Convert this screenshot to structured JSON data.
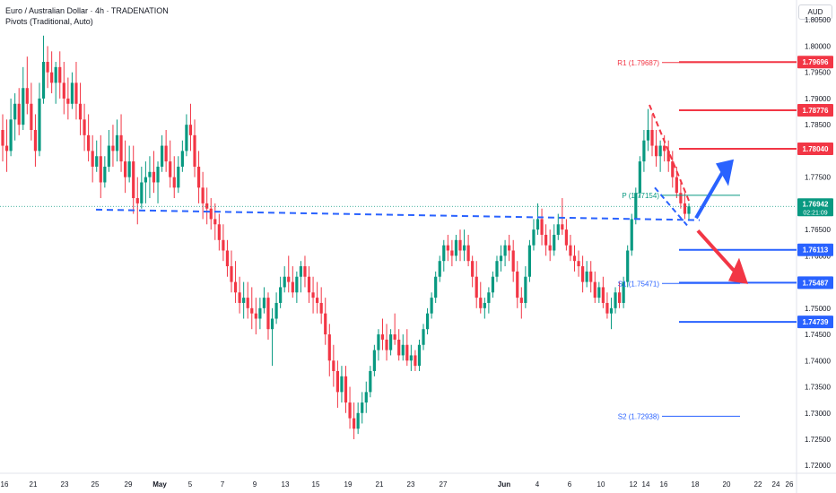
{
  "header": {
    "title": "Euro / Australian Dollar · 4h · TRADENATION",
    "indicator": "Pivots (Traditional, Auto)"
  },
  "currency_button": "AUD",
  "colors": {
    "up": "#089981",
    "down": "#f23645",
    "red_level": "#f23645",
    "blue_level": "#2962ff",
    "pivot": "#089981",
    "dashed_blue": "#2962ff",
    "dashed_red": "#f23645",
    "arrow_blue": "#2962ff",
    "arrow_red": "#f23645"
  },
  "chart_data": {
    "type": "candlestick",
    "timeframe": "4h",
    "y_axis": {
      "ylim": [
        1.7185,
        1.8088
      ],
      "ticks": [
        "1.80500",
        "1.80000",
        "1.79500",
        "1.79000",
        "1.78500",
        "1.78000",
        "1.77500",
        "1.77000",
        "1.76500",
        "1.76000",
        "1.75500",
        "1.75000",
        "1.74500",
        "1.74000",
        "1.73500",
        "1.73000",
        "1.72500",
        "1.72000"
      ]
    },
    "x_axis": {
      "ticks": [
        "16",
        "21",
        "23",
        "25",
        "29",
        "May",
        "5",
        "7",
        "9",
        "13",
        "15",
        "19",
        "21",
        "23",
        "27",
        "Jun",
        "4",
        "6",
        "10",
        "12",
        "14",
        "16",
        "18",
        "20",
        "22",
        "24",
        "26"
      ]
    },
    "current_price": "1.76942",
    "countdown": "02:21:09",
    "resistance_levels": [
      "1.79696",
      "1.78776",
      "1.78040"
    ],
    "support_levels": [
      "1.76113",
      "1.75487",
      "1.74739"
    ],
    "pivots": [
      {
        "label": "R1",
        "value": "1.79687"
      },
      {
        "label": "P",
        "value": "1.77154"
      },
      {
        "label": "S1",
        "value": "1.75471"
      },
      {
        "label": "S2",
        "value": "1.72938"
      }
    ],
    "candles": [
      [
        1.784,
        1.787,
        1.778,
        1.781
      ],
      [
        1.781,
        1.786,
        1.776,
        1.78
      ],
      [
        1.78,
        1.79,
        1.779,
        1.786
      ],
      [
        1.786,
        1.791,
        1.782,
        1.789
      ],
      [
        1.789,
        1.792,
        1.783,
        1.785
      ],
      [
        1.785,
        1.796,
        1.784,
        1.792
      ],
      [
        1.792,
        1.798,
        1.787,
        1.789
      ],
      [
        1.789,
        1.793,
        1.782,
        1.784
      ],
      [
        1.784,
        1.787,
        1.777,
        1.78
      ],
      [
        1.78,
        1.793,
        1.779,
        1.79
      ],
      [
        1.79,
        1.802,
        1.789,
        1.797
      ],
      [
        1.797,
        1.8,
        1.792,
        1.795
      ],
      [
        1.795,
        1.799,
        1.791,
        1.793
      ],
      [
        1.793,
        1.797,
        1.789,
        1.796
      ],
      [
        1.796,
        1.799,
        1.79,
        1.793
      ],
      [
        1.793,
        1.797,
        1.787,
        1.79
      ],
      [
        1.79,
        1.794,
        1.786,
        1.789
      ],
      [
        1.789,
        1.795,
        1.788,
        1.793
      ],
      [
        1.793,
        1.797,
        1.786,
        1.789
      ],
      [
        1.789,
        1.793,
        1.783,
        1.786
      ],
      [
        1.786,
        1.789,
        1.78,
        1.783
      ],
      [
        1.783,
        1.787,
        1.778,
        1.78
      ],
      [
        1.78,
        1.783,
        1.774,
        1.777
      ],
      [
        1.777,
        1.782,
        1.776,
        1.779
      ],
      [
        1.779,
        1.783,
        1.771,
        1.774
      ],
      [
        1.774,
        1.779,
        1.773,
        1.777
      ],
      [
        1.777,
        1.784,
        1.776,
        1.781
      ],
      [
        1.781,
        1.785,
        1.777,
        1.78
      ],
      [
        1.78,
        1.786,
        1.778,
        1.783
      ],
      [
        1.783,
        1.787,
        1.776,
        1.778
      ],
      [
        1.778,
        1.782,
        1.772,
        1.775
      ],
      [
        1.775,
        1.781,
        1.774,
        1.778
      ],
      [
        1.778,
        1.781,
        1.768,
        1.771
      ],
      [
        1.771,
        1.775,
        1.766,
        1.77
      ],
      [
        1.77,
        1.777,
        1.769,
        1.774
      ],
      [
        1.774,
        1.778,
        1.77,
        1.775
      ],
      [
        1.775,
        1.779,
        1.771,
        1.776
      ],
      [
        1.776,
        1.78,
        1.772,
        1.774
      ],
      [
        1.774,
        1.778,
        1.77,
        1.777
      ],
      [
        1.777,
        1.783,
        1.776,
        1.781
      ],
      [
        1.781,
        1.784,
        1.776,
        1.778
      ],
      [
        1.778,
        1.782,
        1.773,
        1.775
      ],
      [
        1.775,
        1.779,
        1.771,
        1.773
      ],
      [
        1.773,
        1.779,
        1.772,
        1.777
      ],
      [
        1.777,
        1.782,
        1.776,
        1.78
      ],
      [
        1.78,
        1.787,
        1.779,
        1.785
      ],
      [
        1.785,
        1.789,
        1.78,
        1.783
      ],
      [
        1.783,
        1.786,
        1.775,
        1.777
      ],
      [
        1.777,
        1.78,
        1.77,
        1.773
      ],
      [
        1.773,
        1.776,
        1.767,
        1.77
      ],
      [
        1.77,
        1.773,
        1.766,
        1.769
      ],
      [
        1.769,
        1.771,
        1.765,
        1.767
      ],
      [
        1.767,
        1.77,
        1.763,
        1.766
      ],
      [
        1.766,
        1.768,
        1.761,
        1.763
      ],
      [
        1.763,
        1.766,
        1.759,
        1.761
      ],
      [
        1.761,
        1.763,
        1.756,
        1.758
      ],
      [
        1.758,
        1.761,
        1.753,
        1.755
      ],
      [
        1.755,
        1.759,
        1.751,
        1.753
      ],
      [
        1.753,
        1.756,
        1.749,
        1.751
      ],
      [
        1.751,
        1.755,
        1.748,
        1.752
      ],
      [
        1.752,
        1.755,
        1.748,
        1.75
      ],
      [
        1.75,
        1.754,
        1.746,
        1.749
      ],
      [
        1.749,
        1.752,
        1.745,
        1.748
      ],
      [
        1.748,
        1.752,
        1.746,
        1.75
      ],
      [
        1.75,
        1.754,
        1.749,
        1.752
      ],
      [
        1.752,
        1.753,
        1.744,
        1.746
      ],
      [
        1.746,
        1.75,
        1.739,
        1.748
      ],
      [
        1.748,
        1.753,
        1.747,
        1.751
      ],
      [
        1.751,
        1.756,
        1.75,
        1.754
      ],
      [
        1.754,
        1.758,
        1.753,
        1.756
      ],
      [
        1.756,
        1.76,
        1.753,
        1.755
      ],
      [
        1.755,
        1.758,
        1.752,
        1.753
      ],
      [
        1.753,
        1.757,
        1.751,
        1.756
      ],
      [
        1.756,
        1.759,
        1.753,
        1.758
      ],
      [
        1.758,
        1.76,
        1.754,
        1.756
      ],
      [
        1.756,
        1.758,
        1.751,
        1.753
      ],
      [
        1.753,
        1.756,
        1.749,
        1.752
      ],
      [
        1.752,
        1.755,
        1.749,
        1.751
      ],
      [
        1.751,
        1.754,
        1.747,
        1.749
      ],
      [
        1.749,
        1.752,
        1.743,
        1.745
      ],
      [
        1.745,
        1.747,
        1.737,
        1.74
      ],
      [
        1.74,
        1.743,
        1.735,
        1.738
      ],
      [
        1.738,
        1.74,
        1.731,
        1.734
      ],
      [
        1.734,
        1.739,
        1.732,
        1.737
      ],
      [
        1.737,
        1.739,
        1.73,
        1.732
      ],
      [
        1.732,
        1.735,
        1.727,
        1.729
      ],
      [
        1.729,
        1.732,
        1.725,
        1.727
      ],
      [
        1.727,
        1.732,
        1.726,
        1.73
      ],
      [
        1.73,
        1.734,
        1.728,
        1.732
      ],
      [
        1.732,
        1.736,
        1.73,
        1.734
      ],
      [
        1.734,
        1.739,
        1.733,
        1.738
      ],
      [
        1.738,
        1.743,
        1.737,
        1.742
      ],
      [
        1.742,
        1.746,
        1.74,
        1.745
      ],
      [
        1.745,
        1.748,
        1.742,
        1.744
      ],
      [
        1.744,
        1.747,
        1.74,
        1.742
      ],
      [
        1.742,
        1.746,
        1.741,
        1.745
      ],
      [
        1.745,
        1.749,
        1.743,
        1.744
      ],
      [
        1.744,
        1.746,
        1.74,
        1.741
      ],
      [
        1.741,
        1.745,
        1.74,
        1.743
      ],
      [
        1.743,
        1.746,
        1.739,
        1.74
      ],
      [
        1.74,
        1.743,
        1.738,
        1.741
      ],
      [
        1.741,
        1.742,
        1.738,
        1.739
      ],
      [
        1.739,
        1.744,
        1.738,
        1.743
      ],
      [
        1.743,
        1.747,
        1.742,
        1.746
      ],
      [
        1.746,
        1.75,
        1.745,
        1.749
      ],
      [
        1.749,
        1.753,
        1.748,
        1.752
      ],
      [
        1.752,
        1.757,
        1.751,
        1.756
      ],
      [
        1.756,
        1.76,
        1.755,
        1.759
      ],
      [
        1.759,
        1.763,
        1.757,
        1.762
      ],
      [
        1.762,
        1.764,
        1.759,
        1.761
      ],
      [
        1.761,
        1.763,
        1.758,
        1.76
      ],
      [
        1.76,
        1.764,
        1.759,
        1.763
      ],
      [
        1.763,
        1.765,
        1.759,
        1.761
      ],
      [
        1.761,
        1.765,
        1.759,
        1.762
      ],
      [
        1.762,
        1.764,
        1.758,
        1.759
      ],
      [
        1.759,
        1.76,
        1.754,
        1.756
      ],
      [
        1.756,
        1.759,
        1.75,
        1.752
      ],
      [
        1.752,
        1.755,
        1.749,
        1.75
      ],
      [
        1.75,
        1.752,
        1.748,
        1.751
      ],
      [
        1.751,
        1.754,
        1.749,
        1.753
      ],
      [
        1.753,
        1.757,
        1.752,
        1.756
      ],
      [
        1.756,
        1.76,
        1.755,
        1.759
      ],
      [
        1.759,
        1.762,
        1.757,
        1.76
      ],
      [
        1.76,
        1.763,
        1.758,
        1.762
      ],
      [
        1.762,
        1.764,
        1.759,
        1.761
      ],
      [
        1.761,
        1.763,
        1.755,
        1.757
      ],
      [
        1.757,
        1.759,
        1.75,
        1.752
      ],
      [
        1.752,
        1.754,
        1.748,
        1.751
      ],
      [
        1.751,
        1.758,
        1.75,
        1.756
      ],
      [
        1.756,
        1.763,
        1.755,
        1.762
      ],
      [
        1.762,
        1.767,
        1.761,
        1.765
      ],
      [
        1.765,
        1.77,
        1.764,
        1.767
      ],
      [
        1.767,
        1.769,
        1.762,
        1.764
      ],
      [
        1.764,
        1.766,
        1.76,
        1.762
      ],
      [
        1.762,
        1.765,
        1.759,
        1.761
      ],
      [
        1.761,
        1.766,
        1.76,
        1.764
      ],
      [
        1.764,
        1.768,
        1.763,
        1.766
      ],
      [
        1.766,
        1.771,
        1.764,
        1.765
      ],
      [
        1.765,
        1.767,
        1.761,
        1.762
      ],
      [
        1.762,
        1.764,
        1.759,
        1.76
      ],
      [
        1.76,
        1.762,
        1.757,
        1.759
      ],
      [
        1.759,
        1.761,
        1.756,
        1.758
      ],
      [
        1.758,
        1.76,
        1.753,
        1.755
      ],
      [
        1.755,
        1.759,
        1.754,
        1.757
      ],
      [
        1.757,
        1.759,
        1.753,
        1.755
      ],
      [
        1.755,
        1.757,
        1.751,
        1.752
      ],
      [
        1.752,
        1.755,
        1.751,
        1.754
      ],
      [
        1.754,
        1.756,
        1.75,
        1.751
      ],
      [
        1.751,
        1.753,
        1.748,
        1.749
      ],
      [
        1.749,
        1.752,
        1.746,
        1.75
      ],
      [
        1.75,
        1.754,
        1.749,
        1.753
      ],
      [
        1.753,
        1.755,
        1.75,
        1.751
      ],
      [
        1.751,
        1.756,
        1.75,
        1.755
      ],
      [
        1.755,
        1.762,
        1.754,
        1.761
      ],
      [
        1.761,
        1.768,
        1.76,
        1.767
      ],
      [
        1.767,
        1.773,
        1.766,
        1.772
      ],
      [
        1.772,
        1.779,
        1.771,
        1.778
      ],
      [
        1.778,
        1.784,
        1.776,
        1.782
      ],
      [
        1.782,
        1.788,
        1.78,
        1.784
      ],
      [
        1.784,
        1.787,
        1.779,
        1.781
      ],
      [
        1.781,
        1.784,
        1.777,
        1.779
      ],
      [
        1.779,
        1.782,
        1.776,
        1.781
      ],
      [
        1.781,
        1.783,
        1.778,
        1.78
      ],
      [
        1.78,
        1.782,
        1.776,
        1.778
      ],
      [
        1.778,
        1.78,
        1.773,
        1.775
      ],
      [
        1.775,
        1.777,
        1.771,
        1.772
      ],
      [
        1.772,
        1.774,
        1.769,
        1.77
      ],
      [
        1.77,
        1.772,
        1.767,
        1.768
      ],
      [
        1.768,
        1.77,
        1.767,
        1.76942
      ]
    ]
  }
}
